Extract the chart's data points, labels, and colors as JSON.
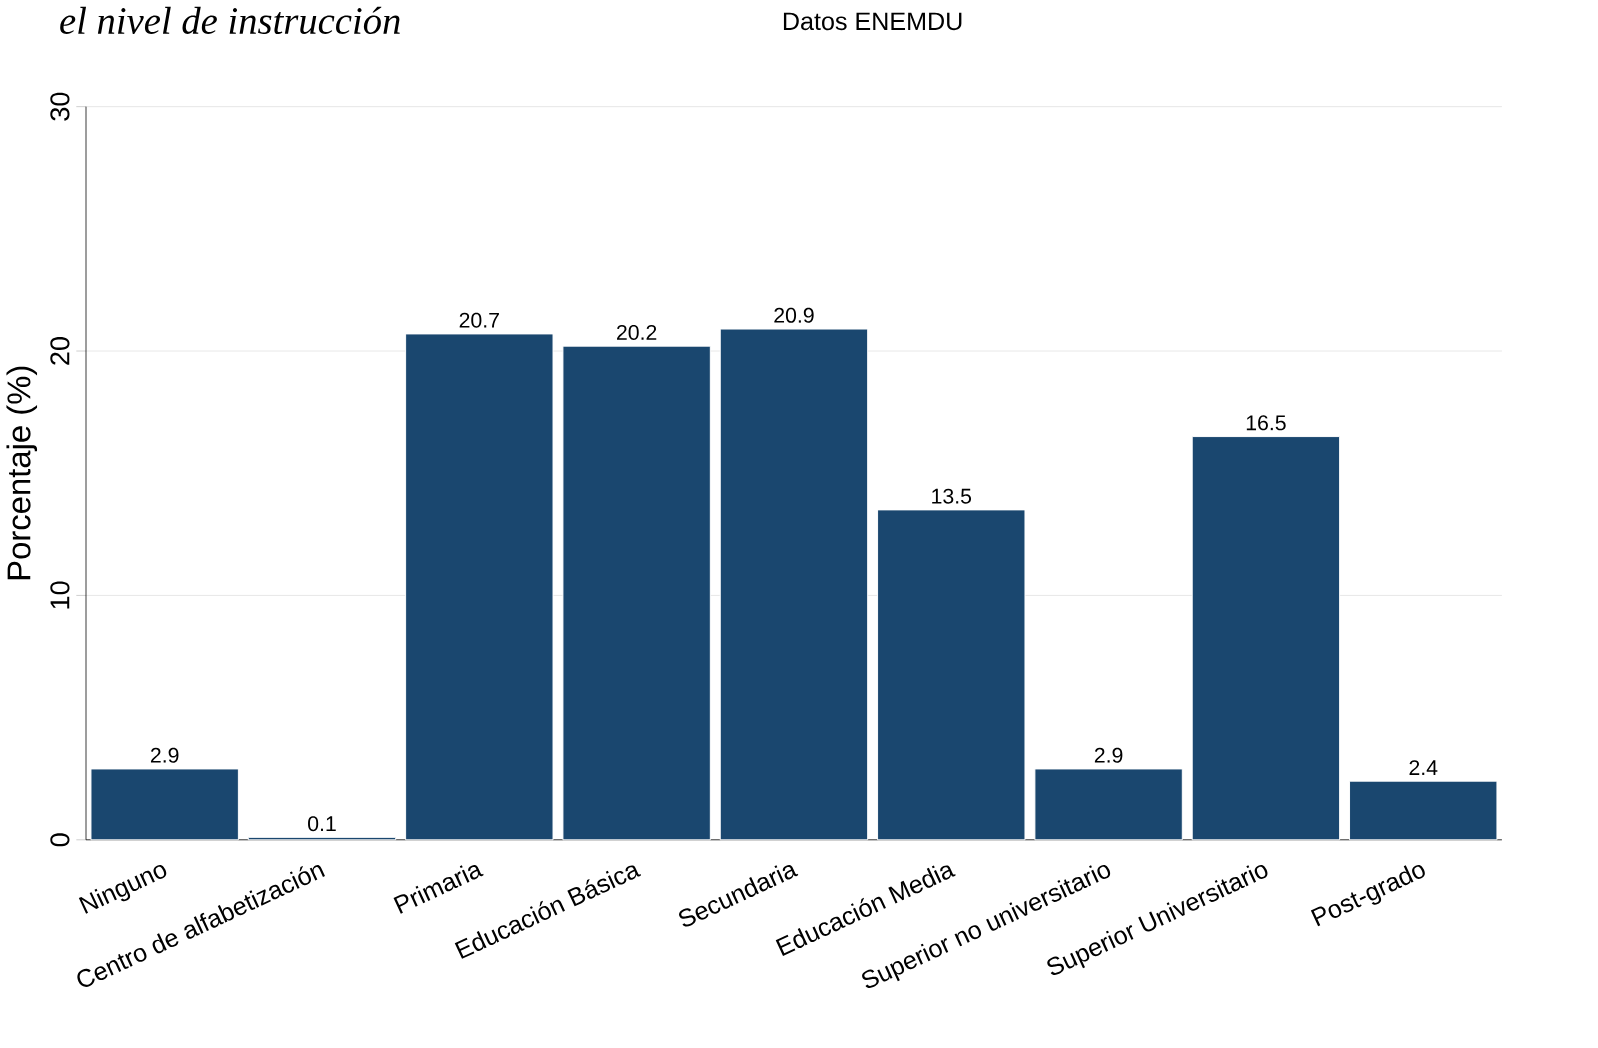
{
  "chart_data": {
    "type": "bar",
    "title": "el nivel de instrucción",
    "subtitle": "Datos ENEMDU",
    "ylabel": "Porcentaje (%)",
    "categories": [
      "Ninguno",
      "Centro de alfabetización",
      "Primaria",
      "Educación Básica",
      "Secundaria",
      "Educación  Media",
      "Superior no universitario",
      "Superior Universitario",
      "Post-grado"
    ],
    "values": [
      2.9,
      0.1,
      20.7,
      20.2,
      20.9,
      13.5,
      2.9,
      16.5,
      2.4
    ],
    "color": "#1a476f",
    "ylim": [
      0,
      30
    ],
    "yticks": [
      0,
      10,
      20,
      30
    ],
    "grid": "y",
    "data_labels": true
  }
}
